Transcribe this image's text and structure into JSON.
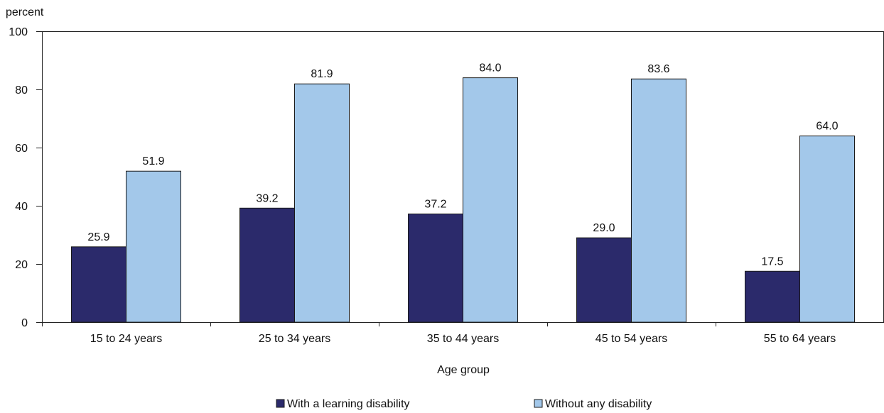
{
  "colors": {
    "series_1": "#2b2a6b",
    "series_2": "#a3c8ea",
    "axis": "#222222",
    "bar_stroke": "#1a1a1a"
  },
  "chart_data": {
    "type": "bar",
    "title": "",
    "xlabel": "Age group",
    "ylabel": "percent",
    "categories": [
      "15 to 24 years",
      "25 to 34 years",
      "35 to 44 years",
      "45 to 54 years",
      "55 to 64 years"
    ],
    "series": [
      {
        "name": "With a learning disability",
        "values": [
          25.9,
          39.2,
          37.2,
          29.0,
          17.5
        ]
      },
      {
        "name": "Without any disability",
        "values": [
          51.9,
          81.9,
          84.0,
          83.6,
          64.0
        ]
      }
    ],
    "value_labels": [
      [
        "25.9",
        "39.2",
        "37.2",
        "29.0",
        "17.5"
      ],
      [
        "51.9",
        "81.9",
        "84.0",
        "83.6",
        "64.0"
      ]
    ],
    "ylim": [
      0,
      100
    ],
    "yticks": [
      "0",
      "20",
      "40",
      "60",
      "80",
      "100"
    ],
    "grid": false,
    "legend_position": "bottom"
  }
}
